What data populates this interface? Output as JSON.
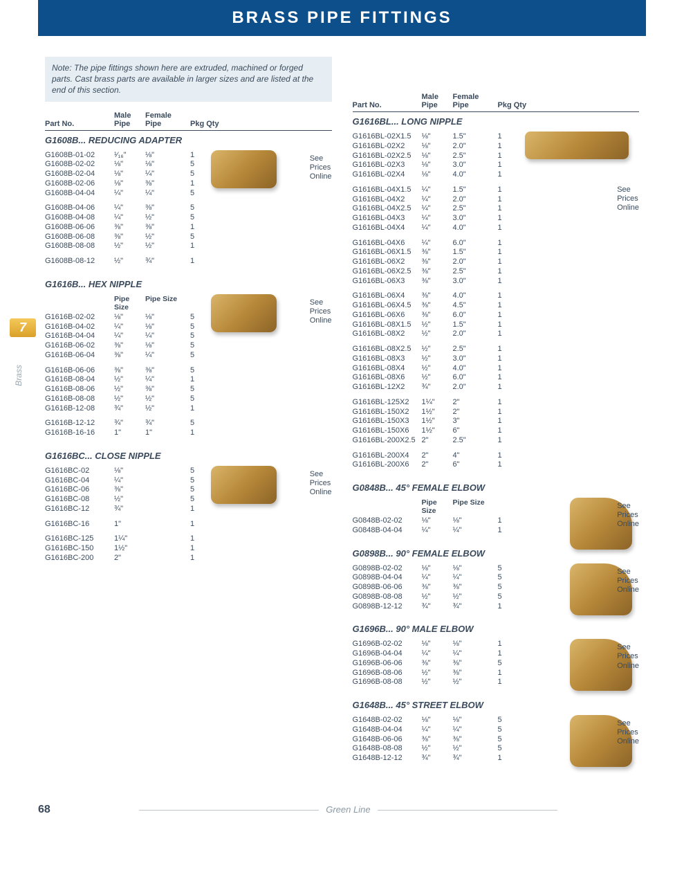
{
  "banner": "BRASS PIPE FITTINGS",
  "note": "Note: The pipe fittings shown here are extruded, machined or forged parts. Cast brass parts are available in larger sizes and are listed at the end of this section.",
  "headers": {
    "part": "Part No.",
    "male": "Male\nPipe",
    "female": "Female\nPipe",
    "qty": "Pkg Qty",
    "pipesize": "Pipe\nSize",
    "pipesize2": "Pipe Size"
  },
  "price_note": "See\nPrices\nOnline",
  "side": {
    "tab": "7",
    "label": "Brass"
  },
  "footer": {
    "page": "68",
    "brand": "Green Line"
  },
  "left_sections": [
    {
      "title": "G1608B...  REDUCING ADAPTER",
      "img": true,
      "img_class": "",
      "groups": [
        [
          [
            "G1608B-01-02",
            "¹⁄₁₆\"",
            "⅛\"",
            "1"
          ],
          [
            "G1608B-02-02",
            "⅛\"",
            "⅛\"",
            "5"
          ],
          [
            "G1608B-02-04",
            "⅛\"",
            "¼\"",
            "5"
          ],
          [
            "G1608B-02-06",
            "⅛\"",
            "⅜\"",
            "1"
          ],
          [
            "G1608B-04-04",
            "¼\"",
            "¼\"",
            "5"
          ]
        ],
        [
          [
            "G1608B-04-06",
            "¼\"",
            "⅜\"",
            "5"
          ],
          [
            "G1608B-04-08",
            "¼\"",
            "½\"",
            "5"
          ],
          [
            "G1608B-06-06",
            "⅜\"",
            "⅜\"",
            "1"
          ],
          [
            "G1608B-06-08",
            "⅜\"",
            "½\"",
            "5"
          ],
          [
            "G1608B-08-08",
            "½\"",
            "½\"",
            "1"
          ]
        ],
        [
          [
            "G1608B-08-12",
            "½\"",
            "¾\"",
            "1"
          ]
        ]
      ]
    },
    {
      "title": "G1616B...  HEX NIPPLE",
      "sub_headers": [
        "Pipe\nSize",
        "Pipe Size"
      ],
      "img": true,
      "img_class": "",
      "groups": [
        [
          [
            "G1616B-02-02",
            "⅛\"",
            "⅛\"",
            "5"
          ],
          [
            "G1616B-04-02",
            "¼\"",
            "⅛\"",
            "5"
          ],
          [
            "G1616B-04-04",
            "¼\"",
            "¼\"",
            "5"
          ],
          [
            "G1616B-06-02",
            "⅜\"",
            "⅛\"",
            "5"
          ],
          [
            "G1616B-06-04",
            "⅜\"",
            "¼\"",
            "5"
          ]
        ],
        [
          [
            "G1616B-06-06",
            "⅜\"",
            "⅜\"",
            "5"
          ],
          [
            "G1616B-08-04",
            "½\"",
            "¼\"",
            "1"
          ],
          [
            "G1616B-08-06",
            "½\"",
            "⅜\"",
            "5"
          ],
          [
            "G1616B-08-08",
            "½\"",
            "½\"",
            "5"
          ],
          [
            "G1616B-12-08",
            "¾\"",
            "½\"",
            "1"
          ]
        ],
        [
          [
            "G1616B-12-12",
            "¾\"",
            "¾\"",
            "5"
          ],
          [
            "G1616B-16-16",
            "1\"",
            "1\"",
            "1"
          ]
        ]
      ]
    },
    {
      "title": "G1616BC...  CLOSE NIPPLE",
      "img": true,
      "img_class": "",
      "groups": [
        [
          [
            "G1616BC-02",
            "⅛\"",
            "",
            "5"
          ],
          [
            "G1616BC-04",
            "¼\"",
            "",
            "5"
          ],
          [
            "G1616BC-06",
            "⅜\"",
            "",
            "5"
          ],
          [
            "G1616BC-08",
            "½\"",
            "",
            "5"
          ],
          [
            "G1616BC-12",
            "¾\"",
            "",
            "1"
          ]
        ],
        [
          [
            "G1616BC-16",
            "1\"",
            "",
            "1"
          ]
        ],
        [
          [
            "G1616BC-125",
            "1¼\"",
            "",
            "1"
          ],
          [
            "G1616BC-150",
            "1½\"",
            "",
            "1"
          ],
          [
            "G1616BC-200",
            "2\"",
            "",
            "1"
          ]
        ]
      ]
    }
  ],
  "right_sections": [
    {
      "title": "G1616BL...  LONG NIPPLE",
      "img": true,
      "img_class": "long",
      "groups": [
        [
          [
            "G1616BL-02X1.5",
            "⅛\"",
            "1.5\"",
            "1"
          ],
          [
            "G1616BL-02X2",
            "⅛\"",
            "2.0\"",
            "1"
          ],
          [
            "G1616BL-02X2.5",
            "⅛\"",
            "2.5\"",
            "1"
          ],
          [
            "G1616BL-02X3",
            "⅛\"",
            "3.0\"",
            "1"
          ],
          [
            "G1616BL-02X4",
            "⅛\"",
            "4.0\"",
            "1"
          ]
        ],
        [
          [
            "G1616BL-04X1.5",
            "¼\"",
            "1.5\"",
            "1"
          ],
          [
            "G1616BL-04X2",
            "¼\"",
            "2.0\"",
            "1"
          ],
          [
            "G1616BL-04X2.5",
            "¼\"",
            "2.5\"",
            "1"
          ],
          [
            "G1616BL-04X3",
            "¼\"",
            "3.0\"",
            "1"
          ],
          [
            "G1616BL-04X4",
            "¼\"",
            "4.0\"",
            "1"
          ]
        ],
        [
          [
            "G1616BL-04X6",
            "¼\"",
            "6.0\"",
            "1"
          ],
          [
            "G1616BL-06X1.5",
            "⅜\"",
            "1.5\"",
            "1"
          ],
          [
            "G1616BL-06X2",
            "⅜\"",
            "2.0\"",
            "1"
          ],
          [
            "G1616BL-06X2.5",
            "⅜\"",
            "2.5\"",
            "1"
          ],
          [
            "G1616BL-06X3",
            "⅜\"",
            "3.0\"",
            "1"
          ]
        ],
        [
          [
            "G1616BL-06X4",
            "⅜\"",
            "4.0\"",
            "1"
          ],
          [
            "G1616BL-06X4.5",
            "⅜\"",
            "4.5\"",
            "1"
          ],
          [
            "G1616BL-06X6",
            "⅜\"",
            "6.0\"",
            "1"
          ],
          [
            "G1616BL-08X1.5",
            "½\"",
            "1.5\"",
            "1"
          ],
          [
            "G1616BL-08X2",
            "½\"",
            "2.0\"",
            "1"
          ]
        ],
        [
          [
            "G1616BL-08X2.5",
            "½\"",
            "2.5\"",
            "1"
          ],
          [
            "G1616BL-08X3",
            "½\"",
            "3.0\"",
            "1"
          ],
          [
            "G1616BL-08X4",
            "½\"",
            "4.0\"",
            "1"
          ],
          [
            "G1616BL-08X6",
            "½\"",
            "6.0\"",
            "1"
          ],
          [
            "G1616BL-12X2",
            "¾\"",
            "2.0\"",
            "1"
          ]
        ],
        [
          [
            "G1616BL-125X2",
            "1¼\"",
            "2\"",
            "1"
          ],
          [
            "G1616BL-150X2",
            "1½\"",
            "2\"",
            "1"
          ],
          [
            "G1616BL-150X3",
            "1½\"",
            "3\"",
            "1"
          ],
          [
            "G1616BL-150X6",
            "1½\"",
            "6\"",
            "1"
          ],
          [
            "G1616BL-200X2.5",
            "2\"",
            "2.5\"",
            "1"
          ]
        ],
        [
          [
            "G1616BL-200X4",
            "2\"",
            "4\"",
            "1"
          ],
          [
            "G1616BL-200X6",
            "2\"",
            "6\"",
            "1"
          ]
        ]
      ],
      "price_top": 100
    },
    {
      "title": "G0848B...  45° FEMALE ELBOW",
      "sub_headers": [
        "Pipe\nSize",
        "Pipe Size"
      ],
      "img": true,
      "img_class": "bend",
      "groups": [
        [
          [
            "G0848B-02-02",
            "⅛\"",
            "⅛\"",
            "1"
          ],
          [
            "G0848B-04-04",
            "¼\"",
            "¼\"",
            "1"
          ]
        ]
      ]
    },
    {
      "title": "G0898B...  90° FEMALE ELBOW",
      "img": true,
      "img_class": "bend",
      "groups": [
        [
          [
            "G0898B-02-02",
            "⅛\"",
            "⅛\"",
            "5"
          ],
          [
            "G0898B-04-04",
            "¼\"",
            "¼\"",
            "5"
          ],
          [
            "G0898B-06-06",
            "⅜\"",
            "⅜\"",
            "5"
          ],
          [
            "G0898B-08-08",
            "½\"",
            "½\"",
            "5"
          ],
          [
            "G0898B-12-12",
            "¾\"",
            "¾\"",
            "1"
          ]
        ]
      ]
    },
    {
      "title": "G1696B...  90° MALE ELBOW",
      "img": true,
      "img_class": "bend",
      "groups": [
        [
          [
            "G1696B-02-02",
            "⅛\"",
            "⅛\"",
            "1"
          ],
          [
            "G1696B-04-04",
            "¼\"",
            "¼\"",
            "1"
          ],
          [
            "G1696B-06-06",
            "⅜\"",
            "⅜\"",
            "5"
          ],
          [
            "G1696B-08-06",
            "½\"",
            "⅜\"",
            "1"
          ],
          [
            "G1696B-08-08",
            "½\"",
            "½\"",
            "1"
          ]
        ]
      ]
    },
    {
      "title": "G1648B...  45° STREET ELBOW",
      "img": true,
      "img_class": "bend",
      "groups": [
        [
          [
            "G1648B-02-02",
            "⅛\"",
            "⅛\"",
            "5"
          ],
          [
            "G1648B-04-04",
            "¼\"",
            "¼\"",
            "5"
          ],
          [
            "G1648B-06-06",
            "⅜\"",
            "⅜\"",
            "5"
          ],
          [
            "G1648B-08-08",
            "½\"",
            "½\"",
            "5"
          ],
          [
            "G1648B-12-12",
            "¾\"",
            "¾\"",
            "1"
          ]
        ]
      ]
    }
  ]
}
